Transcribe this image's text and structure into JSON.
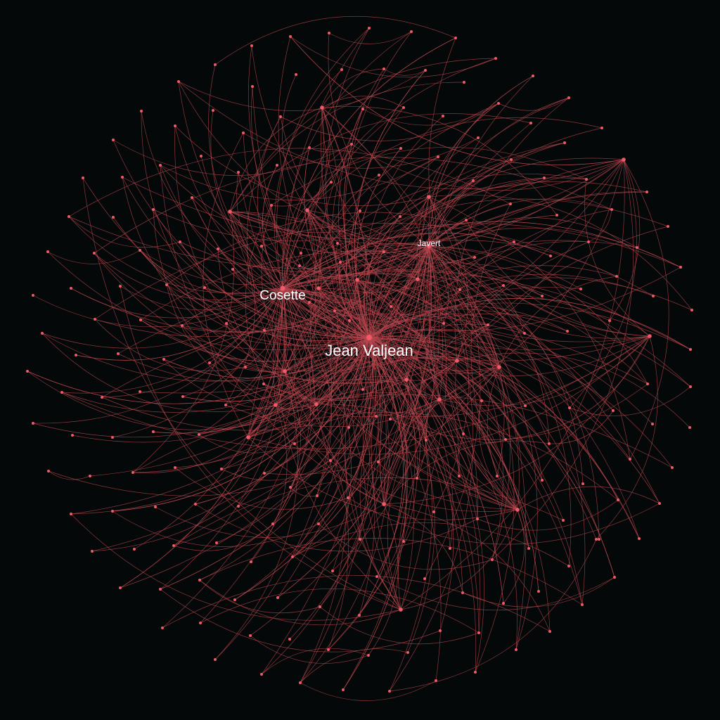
{
  "graph": {
    "background_color": "#050808",
    "edge_color": "#b8474f",
    "node_color": "#f25a67",
    "edge_style": "curved",
    "labeled_nodes": [
      {
        "id": "jean-valjean",
        "label": "Jean Valjean",
        "importance": "high"
      },
      {
        "id": "cosette",
        "label": "Cosette",
        "importance": "medium"
      },
      {
        "id": "javert",
        "label": "Javert",
        "importance": "low"
      }
    ]
  }
}
